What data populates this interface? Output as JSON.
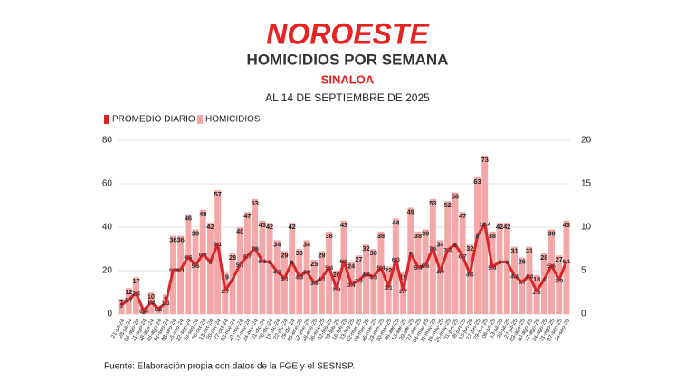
{
  "chart_data": {
    "type": "bar_line",
    "brand": "NOROESTE",
    "title": "HOMICIDIOS POR SEMANA",
    "subtitle": "SINALOA",
    "date_note": "AL 14 DE SEPTIEMBRE DE 2025",
    "source": "Fuente: Elaboración propia con datos de la FGE y el SESNSP.",
    "categories": [
      "21-jul-24",
      "28-jul-24",
      "04-ago-24",
      "11-ago-24",
      "18-ago-24",
      "25-ago-24",
      "01-sep-24",
      "08-sep-24",
      "15-sep-24",
      "22-sep-24",
      "29-sep-24",
      "06-oct-24",
      "13-oct-24",
      "20-oct-24",
      "27-oct-24",
      "03-nov-24",
      "10-nov-24",
      "17-nov-24",
      "24-nov-24",
      "01-dic-24",
      "08-dic-24",
      "15-dic-24",
      "22-dic-24",
      "29-dic-24",
      "05-ene-25",
      "12-ene-25",
      "19-ene-25",
      "26-ene-25",
      "02-feb-25",
      "09-feb-25",
      "16-feb-25",
      "23-feb-25",
      "02-mar-25",
      "09-mar-25",
      "16-mar-25",
      "23-mar-25",
      "30-mar-25",
      "06-abr-25",
      "13-abr-25",
      "20-abr-25",
      "27-abr-25",
      "04-may-25",
      "11-may-25",
      "18-may-25",
      "25-may-25",
      "01-jun-25",
      "08-jun-25",
      "15-jun-25",
      "22-jun-25",
      "29-jun-25",
      "06-jul-25",
      "13-jul-25",
      "20-jul-25",
      "27-jul-25",
      "03-ago-25",
      "10-ago-25",
      "17-ago-25",
      "24-ago-25",
      "31-ago-25",
      "07-sep-25",
      "14-sep-25"
    ],
    "series": [
      {
        "name": "PROMEDIO DIARIO",
        "color": "#d7262b",
        "axis": "y2",
        "values": [
          1,
          1.7,
          2.4,
          0.4,
          1.4,
          0.6,
          1.3,
          5.1,
          5.1,
          6.6,
          5.6,
          6.9,
          6,
          8.1,
          2.7,
          4,
          5.7,
          6.7,
          7.6,
          6.1,
          6,
          4.9,
          4.1,
          6,
          4.3,
          4.9,
          3.6,
          4.1,
          5.4,
          2.9,
          6.1,
          3.4,
          3.9,
          4.6,
          4.3,
          5.4,
          3.1,
          6.3,
          2.7,
          7,
          5.4,
          5.6,
          7.6,
          4.9,
          7.4,
          8,
          6.7,
          4.6,
          9,
          10.4,
          5.4,
          6,
          6,
          4.4,
          3.7,
          4.4,
          2.6,
          4,
          5.6,
          3.9,
          6.1
        ]
      },
      {
        "name": "HOMICIDIOS",
        "color": "#f4a7a7",
        "values": [
          7,
          12,
          17,
          3,
          10,
          4,
          9,
          36,
          36,
          46,
          39,
          48,
          42,
          57,
          19,
          28,
          40,
          47,
          53,
          43,
          42,
          34,
          29,
          42,
          30,
          34,
          25,
          29,
          38,
          20,
          43,
          24,
          27,
          32,
          30,
          38,
          22,
          44,
          19,
          49,
          38,
          39,
          53,
          34,
          52,
          56,
          47,
          32,
          63,
          73,
          38,
          42,
          42,
          31,
          26,
          31,
          18,
          28,
          39,
          27,
          43
        ]
      }
    ],
    "ylim": [
      0,
      80
    ],
    "yticks": [
      0,
      20,
      40,
      60,
      80
    ],
    "y2lim": [
      0,
      20
    ],
    "y2ticks": [
      0,
      5,
      10,
      15,
      20
    ],
    "grid": true
  }
}
